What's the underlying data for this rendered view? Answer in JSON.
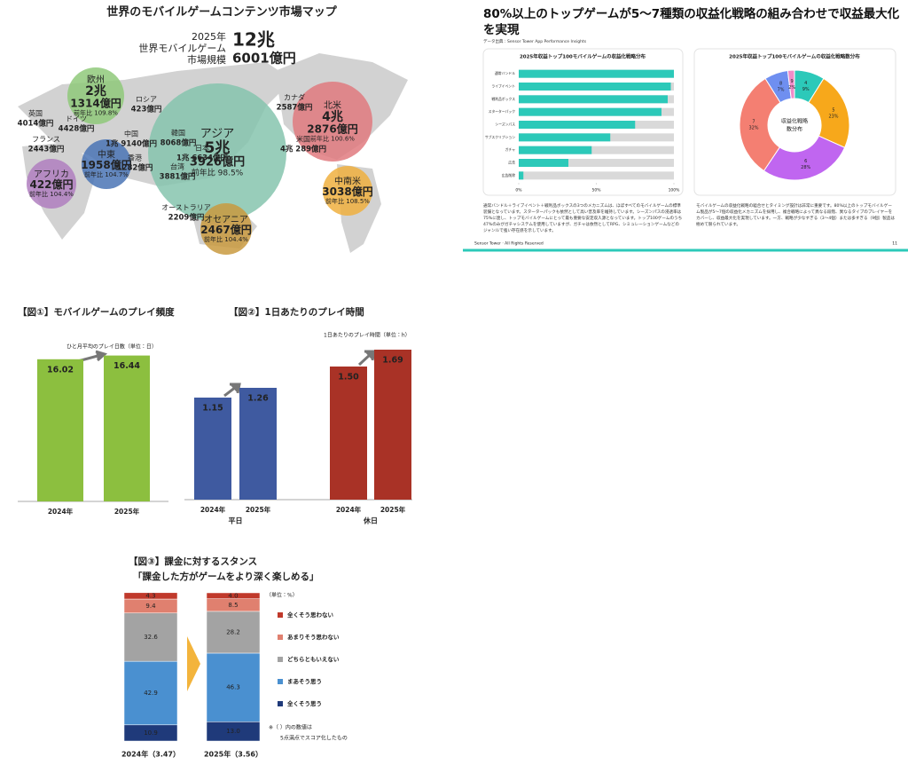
{
  "map": {
    "title": "世界のモバイルゲームコンテンツ市場マップ",
    "total": {
      "year": "2025年",
      "label1": "世界モバイルゲーム",
      "label2": "市場規模",
      "big": "12兆",
      "amount": "6001億円"
    },
    "regions": [
      {
        "name": "欧州",
        "value": "2兆",
        "amount": "1314億円",
        "yoy": "前年比 109.8%"
      },
      {
        "name": "アジア",
        "value": "5兆",
        "amount": "3926億円",
        "yoy": "前年比 98.5%"
      },
      {
        "name": "北米",
        "value": "4兆",
        "amount": "2876億円",
        "yoy": "前年比 100.6%"
      },
      {
        "name": "中東",
        "amount": "1958億円",
        "yoy": "前年比 104.7%"
      },
      {
        "name": "アフリカ",
        "amount": "422億円",
        "yoy": "前年比 104.4%"
      },
      {
        "name": "中南米",
        "amount": "3038億円",
        "yoy": "前年比 108.5%"
      },
      {
        "name": "オセアニア",
        "amount": "2467億円",
        "yoy": "前年比 104.4%"
      }
    ],
    "countries": [
      {
        "name": "英国",
        "amount": "4014億円"
      },
      {
        "name": "ドイツ",
        "amount": "4428億円"
      },
      {
        "name": "フランス",
        "amount": "2443億円"
      },
      {
        "name": "ロシア",
        "amount": "423億円"
      },
      {
        "name": "中国",
        "amount": "1兆 9140億円"
      },
      {
        "name": "韓国",
        "amount": "8068億円"
      },
      {
        "name": "日本",
        "amount": "1兆 6634億円"
      },
      {
        "name": "香港",
        "amount": "1282億円"
      },
      {
        "name": "台湾",
        "amount": "3881億円"
      },
      {
        "name": "カナダ",
        "amount": "2587億円"
      },
      {
        "name": "米国",
        "amount": "4兆 289億円"
      },
      {
        "name": "オーストラリア",
        "amount": "2209億円"
      }
    ]
  },
  "slide": {
    "title": "80%以上のトップゲームが5〜7種類の収益化戦略の組み合わせで収益最大化を実現",
    "source": "データ出典：Sensor Tower App Performance Insights",
    "paragraph_left": "通常バンドル＋ライブイベント＋戦利品ボックスの3つのメカニズムは、ほぼすべてのモバイルゲームの標準装備となっています。スターターパックも依然として高い普及率を維持しています。シーズンパスの浸透率は75%に達し、トップモバイルゲームにとって最も重要な安定収入源となっています。トップ100ゲームのうち47%のみがガチャシステムを使用していますが、ガチャは依然としてRPG、シミュレーションゲームなどのジャンルで強い存在感を示しています。",
    "paragraph_right": "モバイルゲームの収益化戦略の組合せとタイミング設計は非常に重要です。80%以上のトップモバイルゲーム製品が5〜7個の収益化メカニズムを採用し、複合戦略によって異なる段階、異なるタイプのプレイヤーをカバーし、収益最大化を実現しています。一方、戦略が少なすぎる（3〜4個）または多すぎる（9個）製品は極めて限られています。",
    "footer": "Sensor Tower · All Rights Reserved",
    "page": "11"
  },
  "chart_data": [
    {
      "type": "bar",
      "horizontal": true,
      "title": "2025年収益トップ100モバイルゲームの収益化戦略分布",
      "categories": [
        "通常バンドル",
        "ライブイベント",
        "戦利品ボックス",
        "スターターパック",
        "シーズンパス",
        "サブスクリプション",
        "ガチャ",
        "広告",
        "広告削除"
      ],
      "values": [
        100,
        98,
        96,
        92,
        75,
        59,
        47,
        32,
        3
      ],
      "color": "#2cc9b9",
      "xlim": [
        0,
        100
      ],
      "xticks": [
        {
          "value": 0,
          "label": "0%"
        },
        {
          "value": 50,
          "label": "50%"
        },
        {
          "value": 100,
          "label": "100%"
        }
      ]
    },
    {
      "type": "pie",
      "donut": true,
      "title": "2025年収益トップ100モバイルゲームの収益化戦略数分布",
      "center_label": [
        "収益化戦略",
        "数分布"
      ],
      "categories": [
        "4",
        "5",
        "6",
        "7",
        "8",
        "9"
      ],
      "values": [
        9,
        23,
        28,
        32,
        7,
        2
      ],
      "value_labels": [
        "9%",
        "23%",
        "28%",
        "32%",
        "7%",
        "2%"
      ],
      "colors": [
        "#2cc9b9",
        "#f7a81b",
        "#c066f0",
        "#f47f72",
        "#6f8ff0",
        "#f08cc8"
      ]
    },
    {
      "type": "bar",
      "title": "【図①】モバイルゲームのプレイ頻度",
      "annotation": "ひと月平均のプレイ日数（単位：日）",
      "categories": [
        "2024年",
        "2025年"
      ],
      "values": [
        16.02,
        16.44
      ],
      "color": "#8cbf3f",
      "ylim": [
        0,
        18
      ]
    },
    {
      "type": "bar",
      "grouped": true,
      "title": "【図②】1日あたりのプレイ時間",
      "annotation": "1日あたりのプレイ時間（単位：h）",
      "categories": [
        "2024年",
        "2025年"
      ],
      "ylim": [
        0,
        1.8
      ],
      "series": [
        {
          "name": "平日",
          "color": "#3f5aa0",
          "values": [
            1.15,
            1.26
          ],
          "value_labels": [
            "1.15",
            "1.26"
          ]
        },
        {
          "name": "休日",
          "color": "#a93226",
          "values": [
            1.5,
            1.69
          ],
          "value_labels": [
            "1.50",
            "1.69"
          ]
        }
      ]
    },
    {
      "type": "bar",
      "stacked": true,
      "title": "【図③】課金に対するスタンス",
      "subtitle": "「課金した方がゲームをより深く楽しめる」",
      "unit": "（単位：%）",
      "note": [
        "※（ ）内の数値は",
        "5点満点でスコア化したもの"
      ],
      "categories": [
        "2024年（3.47）",
        "2025年（3.56）"
      ],
      "ylim": [
        0,
        100
      ],
      "series": [
        {
          "name": "全くそう思う",
          "color": "#1f3a7a",
          "values": [
            10.9,
            13.0
          ],
          "value_labels": [
            "10.9",
            "13.0"
          ]
        },
        {
          "name": "まあそう思う",
          "color": "#4a90d0",
          "values": [
            42.9,
            46.3
          ],
          "value_labels": [
            "42.9",
            "46.3"
          ]
        },
        {
          "name": "どちらともいえない",
          "color": "#a3a3a3",
          "values": [
            32.6,
            28.2
          ],
          "value_labels": [
            "32.6",
            "28.2"
          ]
        },
        {
          "name": "あまりそう思わない",
          "color": "#e0806f",
          "values": [
            9.4,
            8.5
          ],
          "value_labels": [
            "9.4",
            "8.5"
          ]
        },
        {
          "name": "全くそう思わない",
          "color": "#c0392b",
          "values": [
            4.3,
            4.0
          ],
          "value_labels": [
            "4.3",
            "4.0"
          ]
        }
      ]
    }
  ]
}
